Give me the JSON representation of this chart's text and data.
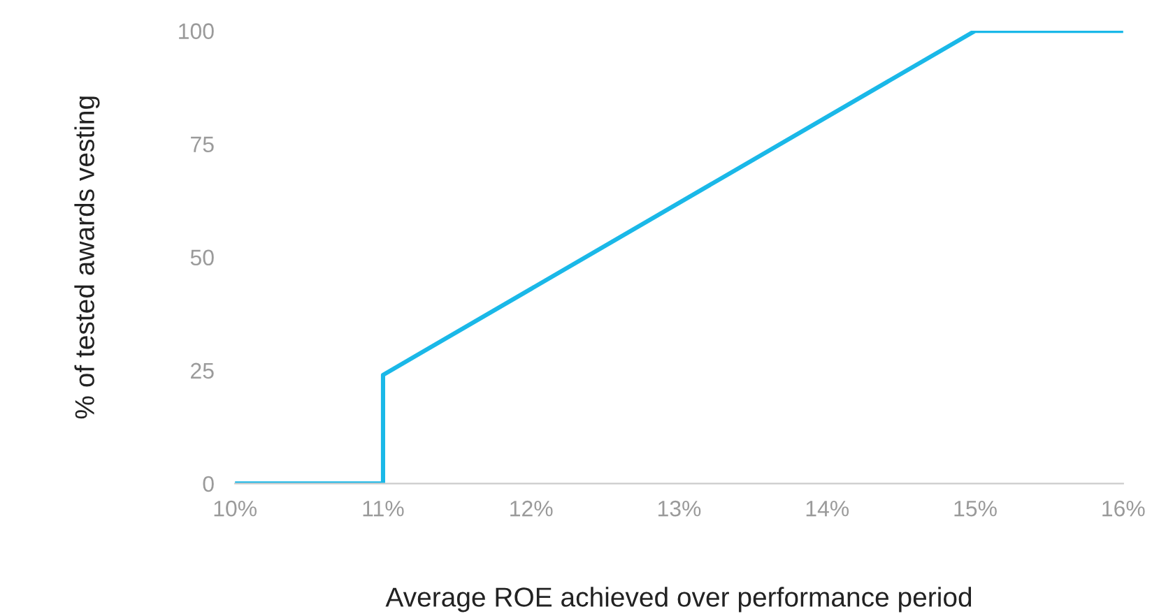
{
  "chart_data": {
    "type": "line",
    "xlabel": "Average ROE achieved over performance period",
    "ylabel": "% of tested awards vesting",
    "x": [
      10,
      11,
      11,
      15,
      16
    ],
    "series": [
      {
        "color": "#1ab8e8",
        "values": [
          0,
          0,
          24,
          100,
          100
        ]
      }
    ],
    "xlim": [
      10,
      16
    ],
    "ylim": [
      0,
      100
    ],
    "xticks": [
      {
        "value": 10,
        "label": "10%"
      },
      {
        "value": 11,
        "label": "11%"
      },
      {
        "value": 12,
        "label": "12%"
      },
      {
        "value": 13,
        "label": "13%"
      },
      {
        "value": 14,
        "label": "14%"
      },
      {
        "value": 15,
        "label": "15%"
      },
      {
        "value": 16,
        "label": "16%"
      }
    ],
    "yticks": [
      0,
      25,
      50,
      75,
      100
    ],
    "grid": false,
    "legend": false,
    "marker": "none",
    "line_style": "solid"
  }
}
